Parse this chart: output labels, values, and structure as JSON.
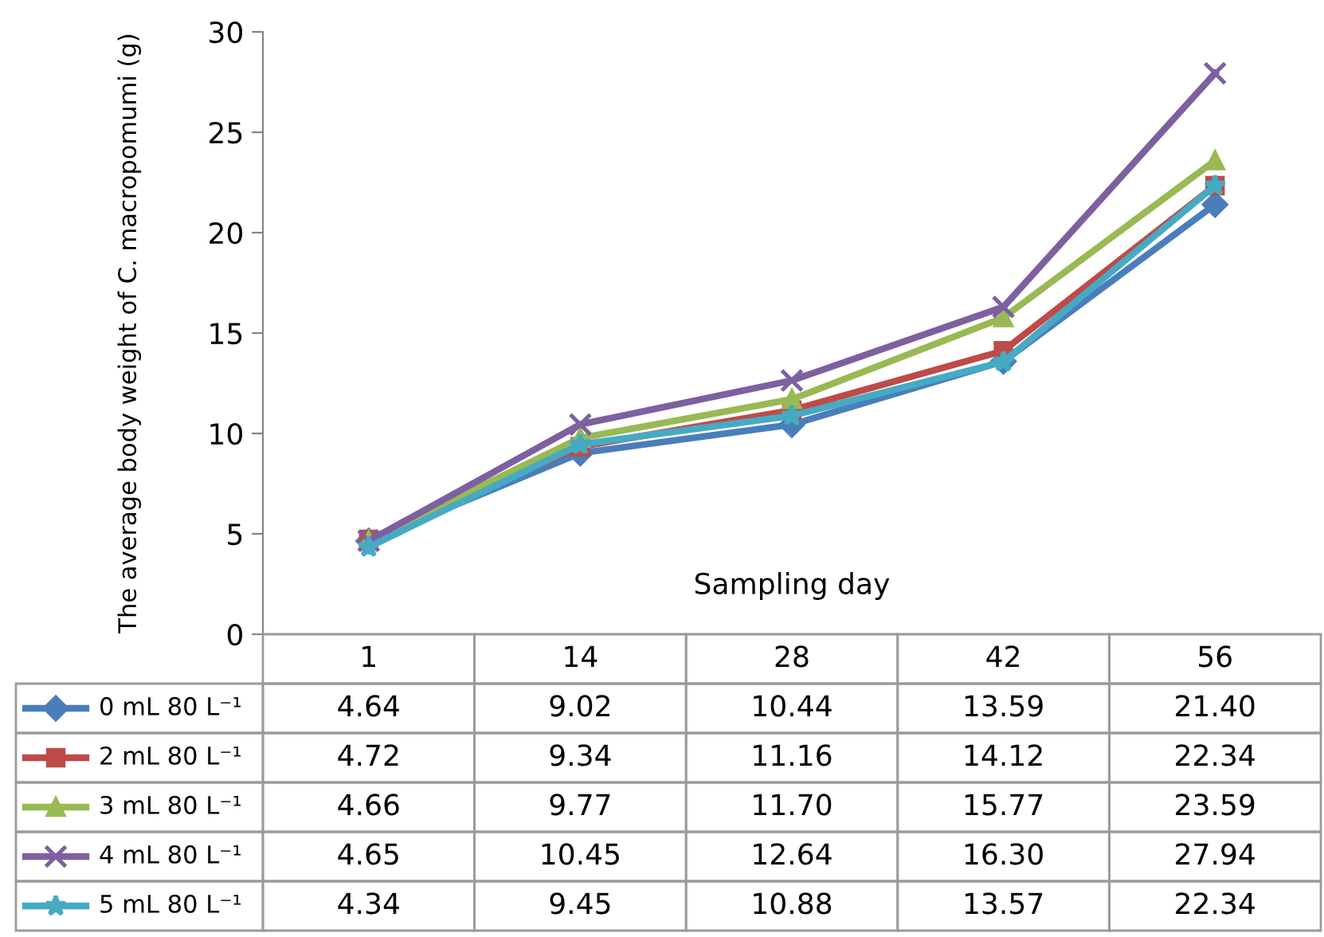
{
  "chart_data": {
    "type": "line",
    "xlabel": "Sampling day",
    "ylabel": "The average body weight of C. macropomumi (g)",
    "categories": [
      "1",
      "14",
      "28",
      "42",
      "56"
    ],
    "ylim": [
      0,
      30
    ],
    "yticks": [
      0,
      5,
      10,
      15,
      20,
      25,
      30
    ],
    "grid": false,
    "legend": "bottom",
    "line_style": "solid",
    "series": [
      {
        "name": "0 mL 80 L⁻¹",
        "color": "#4a7ebb",
        "marker": "diamond",
        "values": [
          4.64,
          9.02,
          10.44,
          13.59,
          21.4
        ],
        "value_labels": [
          "4.64",
          "9.02",
          "10.44",
          "13.59",
          "21.40"
        ]
      },
      {
        "name": "2 mL 80 L⁻¹",
        "color": "#be4b48",
        "marker": "square",
        "values": [
          4.72,
          9.34,
          11.16,
          14.12,
          22.34
        ],
        "value_labels": [
          "4.72",
          "9.34",
          "11.16",
          "14.12",
          "22.34"
        ]
      },
      {
        "name": "3 mL 80 L⁻¹",
        "color": "#98b954",
        "marker": "triangle",
        "values": [
          4.66,
          9.77,
          11.7,
          15.77,
          23.59
        ],
        "value_labels": [
          "4.66",
          "9.77",
          "11.70",
          "15.77",
          "23.59"
        ]
      },
      {
        "name": "4 mL 80 L⁻¹",
        "color": "#7d60a0",
        "marker": "cross",
        "values": [
          4.65,
          10.45,
          12.64,
          16.3,
          27.94
        ],
        "value_labels": [
          "4.65",
          "10.45",
          "12.64",
          "16.30",
          "27.94"
        ]
      },
      {
        "name": "5 mL 80 L⁻¹",
        "color": "#46aac5",
        "marker": "star",
        "values": [
          4.34,
          9.45,
          10.88,
          13.57,
          22.34
        ],
        "value_labels": [
          "4.34",
          "9.45",
          "10.88",
          "13.57",
          "22.34"
        ]
      }
    ]
  }
}
